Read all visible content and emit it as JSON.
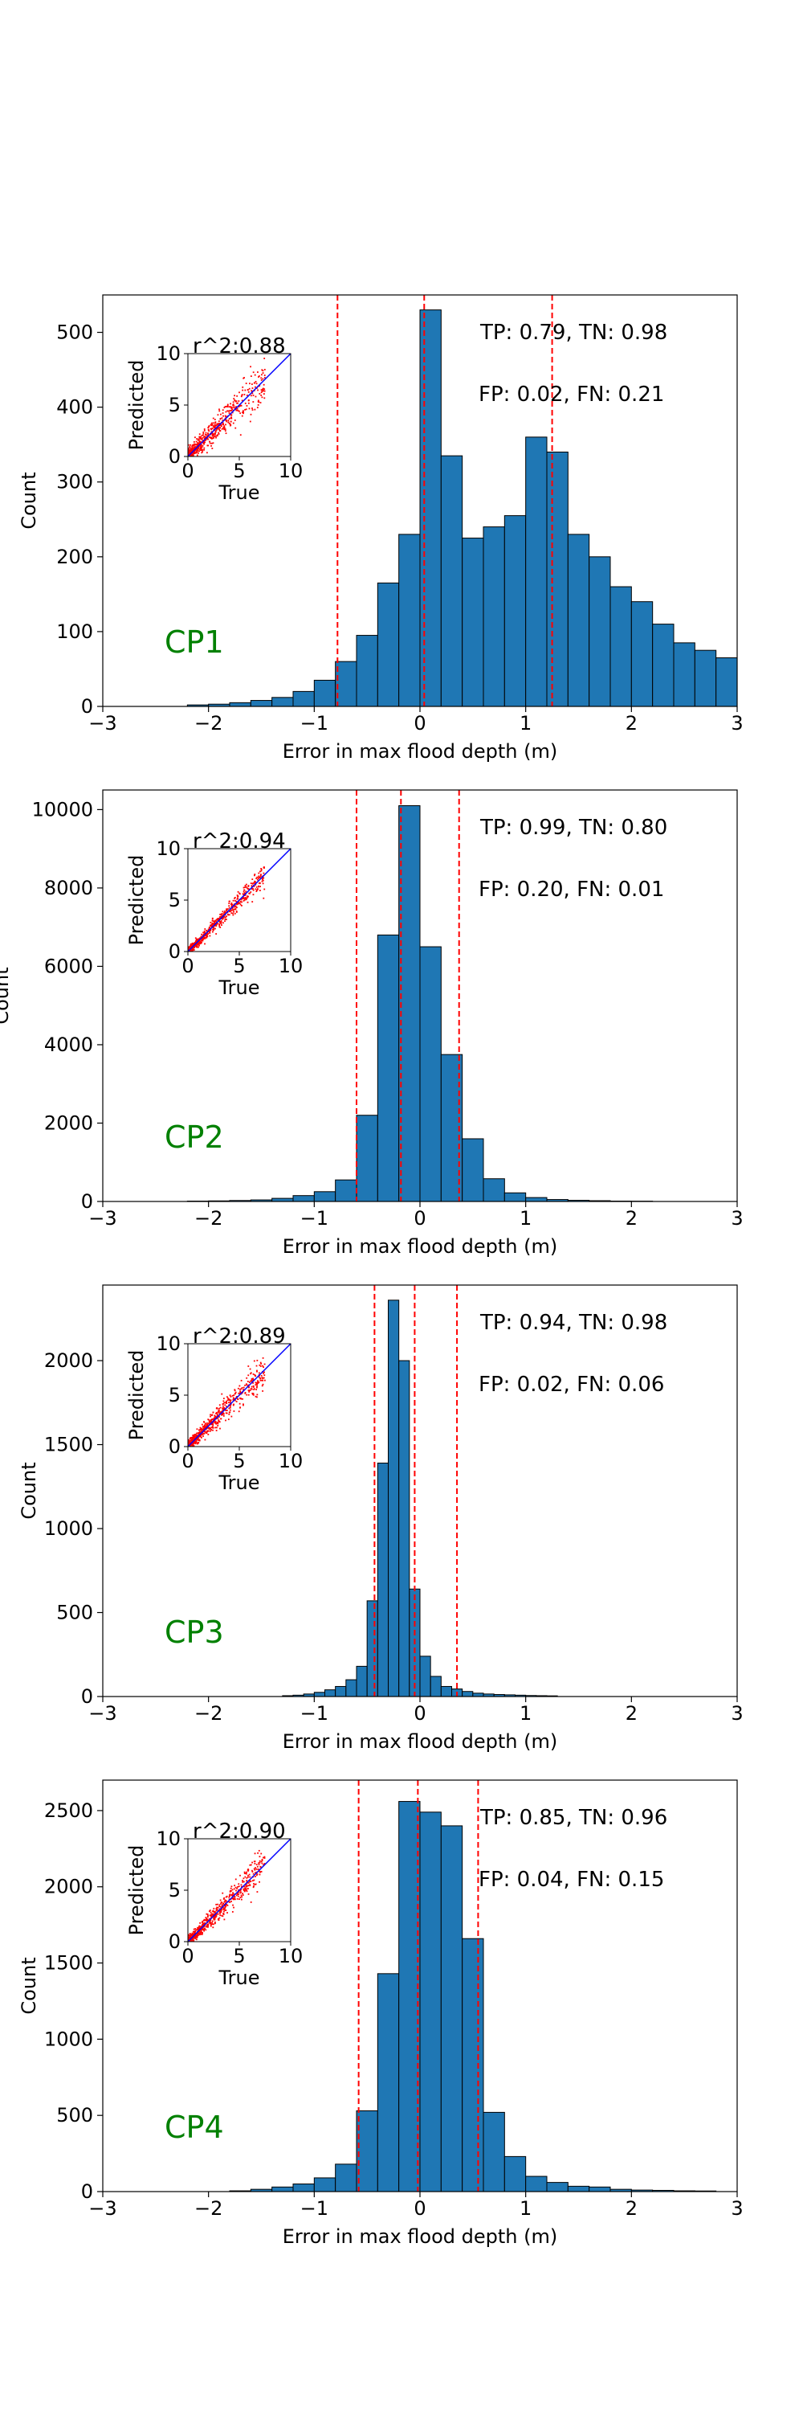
{
  "chart_data": [
    {
      "type": "bar",
      "label": "CP1",
      "title": "",
      "xlabel": "Error in max flood depth (m)",
      "ylabel": "Count",
      "xlim": [
        -3,
        3
      ],
      "ylim": [
        0,
        550
      ],
      "xticks": [
        -3,
        -2,
        -1,
        0,
        1,
        2,
        3
      ],
      "yticks": [
        0,
        100,
        200,
        300,
        400,
        500
      ],
      "bin_width": 0.2,
      "bins": [
        {
          "x": -2.2,
          "count": 2
        },
        {
          "x": -2.0,
          "count": 3
        },
        {
          "x": -1.8,
          "count": 5
        },
        {
          "x": -1.6,
          "count": 8
        },
        {
          "x": -1.4,
          "count": 12
        },
        {
          "x": -1.2,
          "count": 20
        },
        {
          "x": -1.0,
          "count": 35
        },
        {
          "x": -0.8,
          "count": 60
        },
        {
          "x": -0.6,
          "count": 95
        },
        {
          "x": -0.4,
          "count": 165
        },
        {
          "x": -0.2,
          "count": 230
        },
        {
          "x": 0.0,
          "count": 530
        },
        {
          "x": 0.2,
          "count": 335
        },
        {
          "x": 0.4,
          "count": 225
        },
        {
          "x": 0.6,
          "count": 240
        },
        {
          "x": 0.8,
          "count": 255
        },
        {
          "x": 1.0,
          "count": 360
        },
        {
          "x": 1.2,
          "count": 340
        },
        {
          "x": 1.4,
          "count": 230
        },
        {
          "x": 1.6,
          "count": 200
        },
        {
          "x": 1.8,
          "count": 160
        },
        {
          "x": 2.0,
          "count": 140
        },
        {
          "x": 2.2,
          "count": 110
        },
        {
          "x": 2.4,
          "count": 85
        },
        {
          "x": 2.6,
          "count": 75
        },
        {
          "x": 2.8,
          "count": 65
        }
      ],
      "vlines": [
        -0.78,
        0.04,
        1.25
      ],
      "metrics_line1": "TP: 0.79, TN: 0.98",
      "metrics_line2": "FP: 0.02, FN: 0.21",
      "inset": {
        "r2": "r^2:0.88",
        "xlabel": "True",
        "ylabel": "Predicted",
        "xlim": [
          0,
          10
        ],
        "ylim": [
          0,
          10
        ],
        "ticks": [
          0,
          5,
          10
        ],
        "spread": 0.9
      }
    },
    {
      "type": "bar",
      "label": "CP2",
      "title": "",
      "xlabel": "Error in max flood depth (m)",
      "ylabel": "Count",
      "xlim": [
        -3,
        3
      ],
      "ylim": [
        0,
        10500
      ],
      "xticks": [
        -3,
        -2,
        -1,
        0,
        1,
        2,
        3
      ],
      "yticks": [
        0,
        2000,
        4000,
        6000,
        8000,
        10000
      ],
      "bin_width": 0.2,
      "bins": [
        {
          "x": -2.2,
          "count": 10
        },
        {
          "x": -2.0,
          "count": 15
        },
        {
          "x": -1.8,
          "count": 25
        },
        {
          "x": -1.6,
          "count": 40
        },
        {
          "x": -1.4,
          "count": 80
        },
        {
          "x": -1.2,
          "count": 150
        },
        {
          "x": -1.0,
          "count": 250
        },
        {
          "x": -0.8,
          "count": 550
        },
        {
          "x": -0.6,
          "count": 2200
        },
        {
          "x": -0.4,
          "count": 6800
        },
        {
          "x": -0.2,
          "count": 10100
        },
        {
          "x": 0.0,
          "count": 6500
        },
        {
          "x": 0.2,
          "count": 3750
        },
        {
          "x": 0.4,
          "count": 1600
        },
        {
          "x": 0.6,
          "count": 580
        },
        {
          "x": 0.8,
          "count": 220
        },
        {
          "x": 1.0,
          "count": 100
        },
        {
          "x": 1.2,
          "count": 50
        },
        {
          "x": 1.4,
          "count": 30
        },
        {
          "x": 1.6,
          "count": 20
        },
        {
          "x": 1.8,
          "count": 10
        },
        {
          "x": 2.0,
          "count": 8
        }
      ],
      "vlines": [
        -0.6,
        -0.18,
        0.37
      ],
      "metrics_line1": "TP: 0.99, TN: 0.80",
      "metrics_line2": "FP: 0.20, FN: 0.01",
      "inset": {
        "r2": "r^2:0.94",
        "xlabel": "True",
        "ylabel": "Predicted",
        "xlim": [
          0,
          10
        ],
        "ylim": [
          0,
          10
        ],
        "ticks": [
          0,
          5,
          10
        ],
        "spread": 0.5
      }
    },
    {
      "type": "bar",
      "label": "CP3",
      "title": "",
      "xlabel": "Error in max flood depth (m)",
      "ylabel": "Count",
      "xlim": [
        -3,
        3
      ],
      "ylim": [
        0,
        2450
      ],
      "xticks": [
        -3,
        -2,
        -1,
        0,
        1,
        2,
        3
      ],
      "yticks": [
        0,
        500,
        1000,
        1500,
        2000
      ],
      "bin_width": 0.1,
      "bins": [
        {
          "x": -1.3,
          "count": 5
        },
        {
          "x": -1.2,
          "count": 8
        },
        {
          "x": -1.1,
          "count": 15
        },
        {
          "x": -1.0,
          "count": 25
        },
        {
          "x": -0.9,
          "count": 40
        },
        {
          "x": -0.8,
          "count": 60
        },
        {
          "x": -0.7,
          "count": 100
        },
        {
          "x": -0.6,
          "count": 180
        },
        {
          "x": -0.5,
          "count": 570
        },
        {
          "x": -0.4,
          "count": 1390
        },
        {
          "x": -0.3,
          "count": 2360
        },
        {
          "x": -0.2,
          "count": 2000
        },
        {
          "x": -0.1,
          "count": 640
        },
        {
          "x": 0.0,
          "count": 240
        },
        {
          "x": 0.1,
          "count": 120
        },
        {
          "x": 0.2,
          "count": 60
        },
        {
          "x": 0.3,
          "count": 45
        },
        {
          "x": 0.4,
          "count": 30
        },
        {
          "x": 0.5,
          "count": 20
        },
        {
          "x": 0.6,
          "count": 15
        },
        {
          "x": 0.7,
          "count": 12
        },
        {
          "x": 0.8,
          "count": 10
        },
        {
          "x": 0.9,
          "count": 8
        },
        {
          "x": 1.0,
          "count": 6
        },
        {
          "x": 1.1,
          "count": 5
        },
        {
          "x": 1.2,
          "count": 4
        }
      ],
      "vlines": [
        -0.43,
        -0.05,
        0.35
      ],
      "metrics_line1": "TP: 0.94, TN: 0.98",
      "metrics_line2": "FP: 0.02, FN: 0.06",
      "inset": {
        "r2": "r^2:0.89",
        "xlabel": "True",
        "ylabel": "Predicted",
        "xlim": [
          0,
          10
        ],
        "ylim": [
          0,
          10
        ],
        "ticks": [
          0,
          5,
          10
        ],
        "spread": 0.7
      }
    },
    {
      "type": "bar",
      "label": "CP4",
      "title": "",
      "xlabel": "Error in max flood depth (m)",
      "ylabel": "Count",
      "xlim": [
        -3,
        3
      ],
      "ylim": [
        0,
        2700
      ],
      "xticks": [
        -3,
        -2,
        -1,
        0,
        1,
        2,
        3
      ],
      "yticks": [
        0,
        500,
        1000,
        1500,
        2000,
        2500
      ],
      "bin_width": 0.2,
      "bins": [
        {
          "x": -1.8,
          "count": 5
        },
        {
          "x": -1.6,
          "count": 15
        },
        {
          "x": -1.4,
          "count": 30
        },
        {
          "x": -1.2,
          "count": 50
        },
        {
          "x": -1.0,
          "count": 90
        },
        {
          "x": -0.8,
          "count": 180
        },
        {
          "x": -0.6,
          "count": 530
        },
        {
          "x": -0.4,
          "count": 1430
        },
        {
          "x": -0.2,
          "count": 2560
        },
        {
          "x": 0.0,
          "count": 2490
        },
        {
          "x": 0.2,
          "count": 2400
        },
        {
          "x": 0.4,
          "count": 1660
        },
        {
          "x": 0.6,
          "count": 520
        },
        {
          "x": 0.8,
          "count": 230
        },
        {
          "x": 1.0,
          "count": 100
        },
        {
          "x": 1.2,
          "count": 60
        },
        {
          "x": 1.4,
          "count": 35
        },
        {
          "x": 1.6,
          "count": 30
        },
        {
          "x": 1.8,
          "count": 15
        },
        {
          "x": 2.0,
          "count": 10
        },
        {
          "x": 2.2,
          "count": 8
        },
        {
          "x": 2.4,
          "count": 5
        },
        {
          "x": 2.6,
          "count": 4
        }
      ],
      "vlines": [
        -0.58,
        -0.02,
        0.55
      ],
      "metrics_line1": "TP: 0.85, TN: 0.96",
      "metrics_line2": "FP: 0.04, FN: 0.15",
      "inset": {
        "r2": "r^2:0.90",
        "xlabel": "True",
        "ylabel": "Predicted",
        "xlim": [
          0,
          10
        ],
        "ylim": [
          0,
          10
        ],
        "ticks": [
          0,
          5,
          10
        ],
        "spread": 0.7
      }
    }
  ],
  "colors": {
    "bar": "#1f77b4",
    "bar_edge": "#000000",
    "vline": "#ff0000",
    "label": "#008000",
    "scatter": "#ff0000",
    "fit_line": "#0000ff"
  }
}
